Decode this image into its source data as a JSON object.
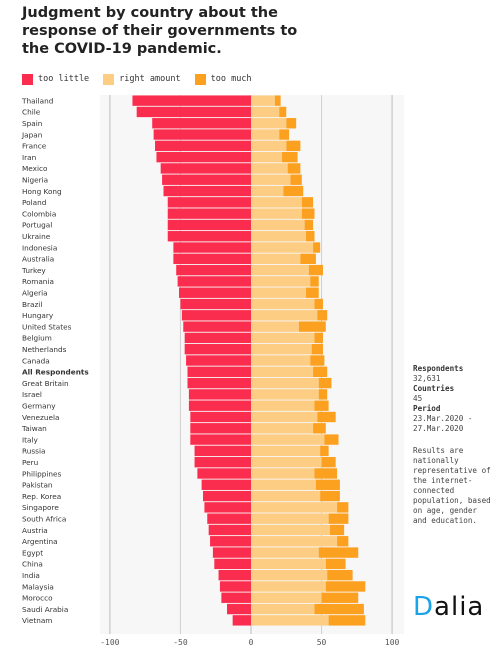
{
  "title": "Judgment by country about the response of their governments to the COVID-19 pandemic.",
  "legend": {
    "too_little": "too little",
    "right_amount": "right amount",
    "too_much": "too much"
  },
  "colors": {
    "too_little": "#fb2d4e",
    "right_amount": "#fdcd83",
    "too_much": "#fca020"
  },
  "sidebar": {
    "respondents_label": "Respondents",
    "respondents_value": "32,631",
    "countries_label": "Countries",
    "countries_value": "45",
    "period_label": "Period",
    "period_start": "23.Mar.2020 -",
    "period_end": "27.Mar.2020",
    "note": "Results are nationally representative of the internet-connected population, based on age, gender and education."
  },
  "logo": {
    "text": "alia",
    "prefix": "D"
  },
  "chart_data": {
    "type": "bar",
    "orientation": "horizontal-diverging",
    "x_ticks": [
      -100,
      -50,
      0,
      50,
      100
    ],
    "xlim": [
      -107,
      107
    ],
    "categories": [
      "Thailand",
      "Chile",
      "Spain",
      "Japan",
      "France",
      "Iran",
      "Mexico",
      "Nigeria",
      "Hong Kong",
      "Poland",
      "Colombia",
      "Portugal",
      "Ukraine",
      "Indonesia",
      "Australia",
      "Turkey",
      "Romania",
      "Algeria",
      "Brazil",
      "Hungary",
      "United States",
      "Belgium",
      "Netherlands",
      "Canada",
      "All Respondents",
      "Great Britain",
      "Israel",
      "Germany",
      "Venezuela",
      "Taiwan",
      "Italy",
      "Russia",
      "Peru",
      "Philippines",
      "Pakistan",
      "Rep. Korea",
      "Singapore",
      "South Africa",
      "Austria",
      "Argentina",
      "Egypt",
      "China",
      "India",
      "Malaysia",
      "Morocco",
      "Saudi Arabia",
      "Vietnam"
    ],
    "highlight_category": "All Respondents",
    "series": [
      {
        "name": "too little",
        "values": [
          84,
          81,
          70,
          69,
          68,
          67,
          64,
          63,
          62,
          59,
          59,
          59,
          59,
          55,
          55,
          53,
          52,
          51,
          50,
          49,
          48,
          47,
          47,
          46,
          45,
          45,
          44,
          44,
          43,
          43,
          43,
          40,
          40,
          38,
          35,
          34,
          33,
          31,
          30,
          29,
          27,
          26,
          23,
          22,
          21,
          17,
          13
        ]
      },
      {
        "name": "right amount",
        "values": [
          17,
          20,
          25,
          20,
          25,
          22,
          26,
          28,
          23,
          36,
          36,
          38,
          39,
          44,
          35,
          41,
          42,
          39,
          45,
          47,
          34,
          45,
          43,
          42,
          44,
          48,
          48,
          45,
          47,
          44,
          52,
          49,
          50,
          45,
          46,
          49,
          61,
          55,
          56,
          61,
          48,
          53,
          54,
          53,
          50,
          45,
          55
        ]
      },
      {
        "name": "too much",
        "values": [
          4,
          5,
          7,
          7,
          10,
          11,
          9,
          8,
          14,
          8,
          9,
          6,
          6,
          5,
          11,
          10,
          6,
          9,
          6,
          7,
          19,
          6,
          8,
          10,
          10,
          9,
          6,
          10,
          13,
          9,
          10,
          6,
          10,
          16,
          17,
          14,
          8,
          14,
          10,
          8,
          28,
          14,
          18,
          28,
          26,
          35,
          26
        ]
      }
    ]
  }
}
